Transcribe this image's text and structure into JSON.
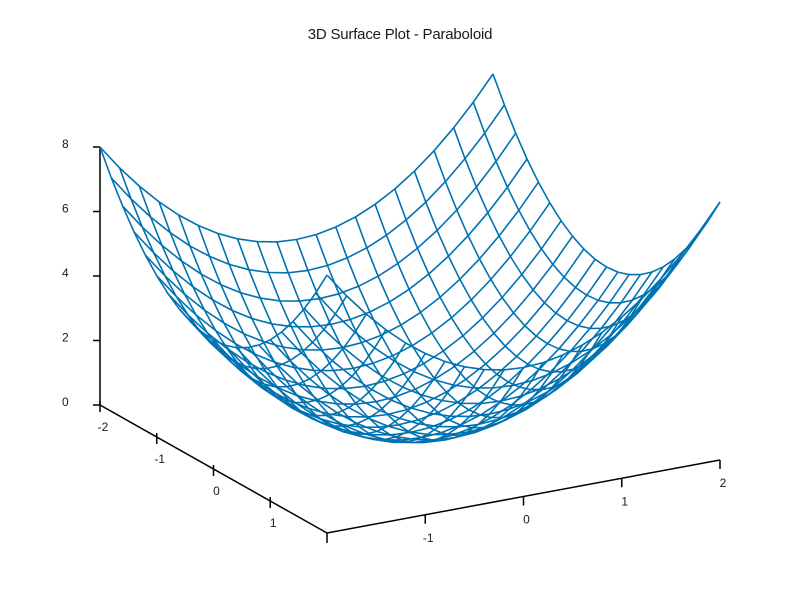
{
  "chart_data": {
    "type": "surface3d",
    "title": "3D Surface Plot - Paraboloid",
    "function": "z = x^2 + y^2",
    "xlabel": "",
    "ylabel": "",
    "zlabel": "",
    "x_range": [
      -2,
      2
    ],
    "y_range": [
      -2,
      2
    ],
    "z_range": [
      0,
      8
    ],
    "grid_steps": 20,
    "x_ticks": [
      -2,
      -1,
      0,
      1
    ],
    "y_ticks": [
      -1,
      0,
      1,
      2
    ],
    "z_ticks": [
      0,
      2,
      4,
      6,
      8
    ],
    "style": "wireframe",
    "line_color": "#0072B2",
    "axis_color": "#000000",
    "sample_points": [
      {
        "x": -2,
        "y": -2,
        "z": 8
      },
      {
        "x": -2,
        "y": 2,
        "z": 8
      },
      {
        "x": 2,
        "y": 2,
        "z": 8
      },
      {
        "x": 2,
        "y": -2,
        "z": 8
      },
      {
        "x": 0,
        "y": 0,
        "z": 0
      }
    ]
  }
}
